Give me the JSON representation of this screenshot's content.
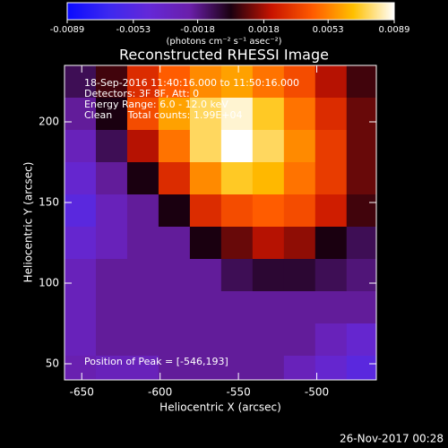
{
  "chart_data": {
    "type": "heatmap",
    "title": "Reconstructed RHESSI Image",
    "xlabel": "Heliocentric X (arcsec)",
    "ylabel": "Heliocentric Y (arcsec)",
    "annotations": [
      "18-Sep-2016 11:40:16.000 to 11:50:16.000",
      "Detectors: 3F 8F, Att: 0",
      "Energy Range: 6.0 - 12.0 keV",
      "Clean     Total counts: 1.99E+04"
    ],
    "peak_annotation": "Position of Peak = [-546,193]",
    "footer": "26-Nov-2017 00:28",
    "colorbar_label": "(photons cm⁻² s⁻¹ asec⁻²)",
    "clim": [
      -0.0089,
      0.0089
    ],
    "cticks": [
      -0.0089,
      -0.0053,
      -0.0018,
      0.0018,
      0.0053,
      0.0089
    ],
    "colormap": [
      "#0a0aff",
      "#3c28f0",
      "#6428d8",
      "#6a1faa",
      "#1a0010",
      "#c81400",
      "#ff5a00",
      "#ffc000",
      "#ffffff"
    ],
    "xlim": [
      -661,
      -462
    ],
    "ylim": [
      40,
      235
    ],
    "xticks": [
      -650,
      -600,
      -550,
      -500
    ],
    "yticks": [
      50,
      100,
      150,
      200
    ],
    "x": [
      -651,
      -631,
      -611,
      -591,
      -571,
      -551,
      -531,
      -511,
      -491,
      -471
    ],
    "y": [
      225,
      205,
      185,
      165,
      145,
      125,
      105,
      85,
      65,
      45
    ],
    "z": [
      [
        -0.001,
        0.0005,
        0.003,
        0.0045,
        0.0055,
        0.006,
        0.005,
        0.004,
        0.002,
        0.0005
      ],
      [
        -0.002,
        0.0,
        0.004,
        0.006,
        0.0075,
        0.0085,
        0.007,
        0.005,
        0.003,
        0.001
      ],
      [
        -0.003,
        -0.001,
        0.002,
        0.005,
        0.0075,
        0.0089,
        0.0075,
        0.0055,
        0.0035,
        0.001
      ],
      [
        -0.004,
        -0.002,
        0.0,
        0.003,
        0.0055,
        0.007,
        0.0065,
        0.005,
        0.0035,
        0.001
      ],
      [
        -0.005,
        -0.003,
        -0.002,
        0.0,
        0.003,
        0.004,
        0.0045,
        0.004,
        0.0025,
        0.0005
      ],
      [
        -0.004,
        -0.003,
        -0.002,
        -0.002,
        0.0,
        0.001,
        0.002,
        0.0015,
        0.0,
        -0.001
      ],
      [
        -0.003,
        -0.002,
        -0.002,
        -0.002,
        -0.002,
        -0.001,
        -0.0005,
        -0.0005,
        -0.001,
        -0.0015
      ],
      [
        -0.003,
        -0.002,
        -0.002,
        -0.002,
        -0.002,
        -0.002,
        -0.002,
        -0.002,
        -0.002,
        -0.002
      ],
      [
        -0.003,
        -0.002,
        -0.002,
        -0.002,
        -0.002,
        -0.002,
        -0.002,
        -0.002,
        -0.003,
        -0.004
      ],
      [
        -0.0025,
        -0.003,
        -0.003,
        -0.002,
        -0.002,
        -0.002,
        -0.002,
        -0.003,
        -0.004,
        -0.005
      ]
    ]
  }
}
